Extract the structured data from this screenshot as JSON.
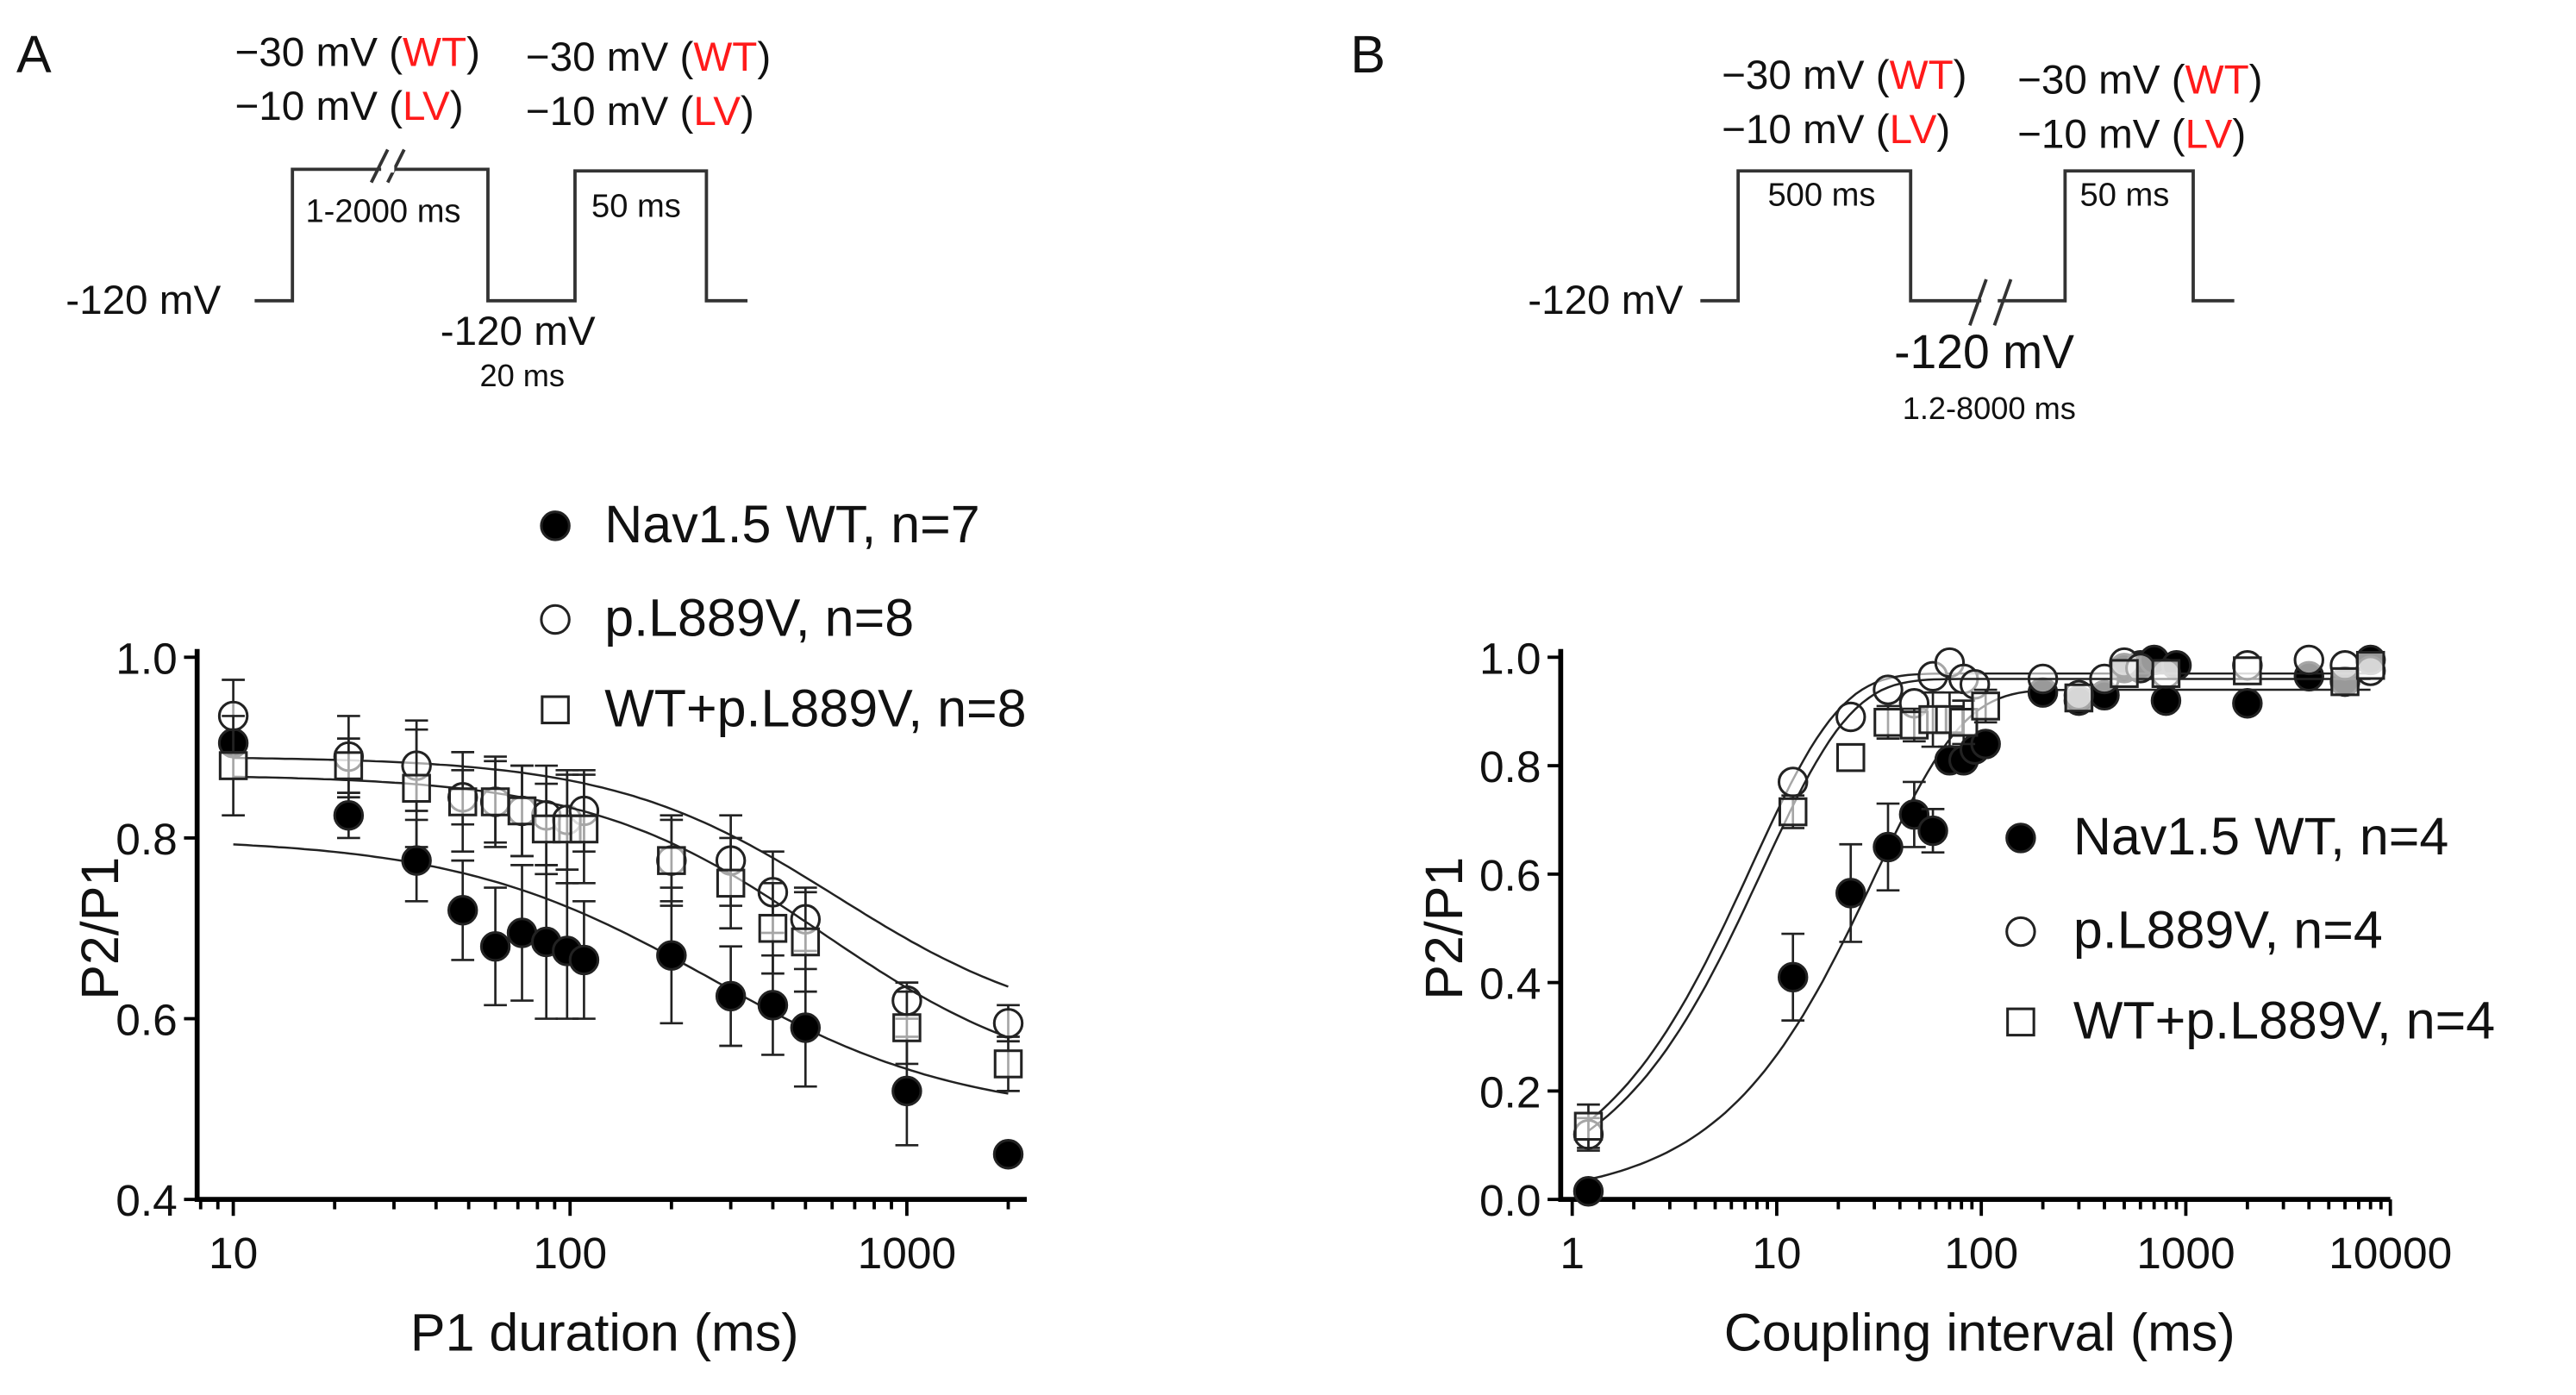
{
  "panels": {
    "A": {
      "letter": "A",
      "protocol": {
        "p1_line1": {
          "pre": "−30 mV (",
          "tag": "WT",
          "post": ")"
        },
        "p1_line2": {
          "pre": "−10 mV (",
          "tag": "LV",
          "post": ")"
        },
        "p2_line1": {
          "pre": "−30 mV (",
          "tag": "WT",
          "post": ")"
        },
        "p2_line2": {
          "pre": "−10 mV (",
          "tag": "LV",
          "post": ")"
        },
        "holding": "-120 mV",
        "p1_duration": "1-2000 ms",
        "p2_duration": "50 ms",
        "interval_voltage": "-120 mV",
        "interval_duration": "20 ms"
      }
    },
    "B": {
      "letter": "B",
      "protocol": {
        "p1_line1": {
          "pre": "−30 mV (",
          "tag": "WT",
          "post": ")"
        },
        "p1_line2": {
          "pre": "−10 mV (",
          "tag": "LV",
          "post": ")"
        },
        "p2_line1": {
          "pre": "−30 mV (",
          "tag": "WT",
          "post": ")"
        },
        "p2_line2": {
          "pre": "−10 mV (",
          "tag": "LV",
          "post": ")"
        },
        "holding": "-120 mV",
        "p1_duration": "500 ms",
        "p2_duration": "50 ms",
        "interval_voltage": "-120 mV",
        "interval_duration": "1.2-8000 ms"
      }
    }
  },
  "colors": {
    "tag": "#ff1a1a",
    "ink": "#111111"
  },
  "chart_data": [
    {
      "type": "scatter",
      "panel": "A",
      "xlabel": "P1 duration (ms)",
      "ylabel": "P2/P1",
      "xscale": "log",
      "xlim": [
        8,
        2200
      ],
      "ylim": [
        0.4,
        1.0
      ],
      "xticks": [
        "10",
        "100",
        "1000"
      ],
      "yticks": [
        "0.4",
        "0.6",
        "0.8",
        "1.0"
      ],
      "legend_position": "top-right",
      "series": [
        {
          "name": "Nav1.5 WT, n=7",
          "marker": "filled-circle",
          "x": [
            10,
            22,
            35,
            48,
            60,
            72,
            85,
            98,
            110,
            200,
            300,
            400,
            500,
            1000,
            2000
          ],
          "y": [
            0.905,
            0.825,
            0.775,
            0.72,
            0.68,
            0.695,
            0.685,
            0.675,
            0.665,
            0.67,
            0.625,
            0.615,
            0.59,
            0.52,
            0.45
          ],
          "err": [
            0,
            0.025,
            0.045,
            0.055,
            0.065,
            0.075,
            0.085,
            0.075,
            0.065,
            0.075,
            0.055,
            0.055,
            0.065,
            0.06,
            0
          ],
          "fit": {
            "top": 0.8,
            "bottom": 0.49,
            "x50": 260,
            "slope": 1.15
          }
        },
        {
          "name": "p.L889V, n=8",
          "marker": "open-circle",
          "x": [
            10,
            22,
            35,
            48,
            60,
            72,
            85,
            98,
            110,
            200,
            300,
            400,
            500,
            1000,
            2000
          ],
          "y": [
            0.935,
            0.89,
            0.88,
            0.845,
            0.84,
            0.83,
            0.825,
            0.82,
            0.83,
            0.775,
            0.775,
            0.74,
            0.71,
            0.62,
            0.595
          ],
          "err": [
            0.04,
            0.045,
            0.05,
            0.03,
            0.045,
            0.05,
            0.055,
            0.055,
            0.045,
            0.045,
            0.05,
            0.045,
            0.035,
            0.02,
            0.02
          ],
          "fit": {
            "top": 0.89,
            "bottom": 0.58,
            "x50": 620,
            "slope": 1.3
          }
        },
        {
          "name": "WT+p.L889V, n=8",
          "marker": "open-square",
          "x": [
            10,
            22,
            35,
            48,
            60,
            72,
            85,
            98,
            110,
            200,
            300,
            400,
            500,
            1000,
            2000
          ],
          "y": [
            0.88,
            0.88,
            0.855,
            0.84,
            0.84,
            0.83,
            0.81,
            0.81,
            0.81,
            0.775,
            0.75,
            0.7,
            0.685,
            0.59,
            0.55
          ],
          "err": [
            0.055,
            0.03,
            0.065,
            0.055,
            0.05,
            0.05,
            0.05,
            0.06,
            0.06,
            0.05,
            0.05,
            0.05,
            0.055,
            0.04,
            0.03
          ],
          "fit": {
            "top": 0.87,
            "bottom": 0.52,
            "x50": 560,
            "slope": 1.25
          }
        }
      ]
    },
    {
      "type": "scatter",
      "panel": "B",
      "xlabel": "Coupling interval (ms)",
      "ylabel": "P2/P1",
      "xscale": "log",
      "xlim": [
        1,
        10000
      ],
      "ylim": [
        0.0,
        1.0
      ],
      "xticks": [
        "1",
        "10",
        "100",
        "1000",
        "10000"
      ],
      "yticks": [
        "0.0",
        "0.2",
        "0.4",
        "0.6",
        "0.8",
        "1.0"
      ],
      "legend_position": "center-right",
      "series": [
        {
          "name": "Nav1.5 WT, n=4",
          "marker": "filled-circle",
          "x": [
            1.2,
            12,
            23,
            35,
            47,
            58,
            70,
            82,
            93,
            105,
            200,
            300,
            400,
            500,
            600,
            700,
            800,
            900,
            2000,
            4000,
            6000,
            8000
          ],
          "y": [
            0.015,
            0.41,
            0.565,
            0.65,
            0.71,
            0.68,
            0.81,
            0.81,
            0.83,
            0.84,
            0.935,
            0.92,
            0.93,
            0.98,
            0.985,
            0.995,
            0.92,
            0.985,
            0.915,
            0.965,
            0.955,
            0.995
          ],
          "err": [
            0,
            0.08,
            0.09,
            0.08,
            0.06,
            0.04,
            0,
            0,
            0,
            0,
            0,
            0,
            0,
            0,
            0,
            0,
            0,
            0,
            0,
            0,
            0,
            0
          ],
          "fit": {
            "amp": 0.94,
            "tau": 30
          }
        },
        {
          "name": "p.L889V, n=4",
          "marker": "open-circle",
          "x": [
            1.2,
            12,
            23,
            35,
            47,
            58,
            70,
            82,
            93,
            200,
            300,
            400,
            500,
            600,
            800,
            2000,
            4000,
            6000,
            8000
          ],
          "y": [
            0.12,
            0.77,
            0.89,
            0.94,
            0.915,
            0.965,
            0.99,
            0.96,
            0.95,
            0.96,
            0.93,
            0.96,
            0.99,
            0.98,
            0.97,
            0.985,
            0.995,
            0.985,
            0.975
          ],
          "err": [
            0.03,
            0,
            0,
            0,
            0,
            0,
            0,
            0,
            0,
            0,
            0,
            0,
            0,
            0,
            0,
            0,
            0,
            0,
            0
          ],
          "fit": {
            "amp": 0.97,
            "tau": 7.5
          }
        },
        {
          "name": "WT+p.L889V, n=4",
          "marker": "open-square",
          "x": [
            1.2,
            12,
            23,
            35,
            47,
            58,
            70,
            82,
            105,
            300,
            500,
            800,
            2000,
            6000,
            8000
          ],
          "y": [
            0.135,
            0.715,
            0.815,
            0.88,
            0.875,
            0.885,
            0.885,
            0.88,
            0.91,
            0.925,
            0.97,
            0.97,
            0.975,
            0.955,
            0.985
          ],
          "err": [
            0.04,
            0.03,
            0,
            0.03,
            0.03,
            0.05,
            0.05,
            0.04,
            0.03,
            0,
            0,
            0,
            0,
            0,
            0
          ],
          "fit": {
            "amp": 0.96,
            "tau": 8.5
          }
        }
      ]
    }
  ]
}
